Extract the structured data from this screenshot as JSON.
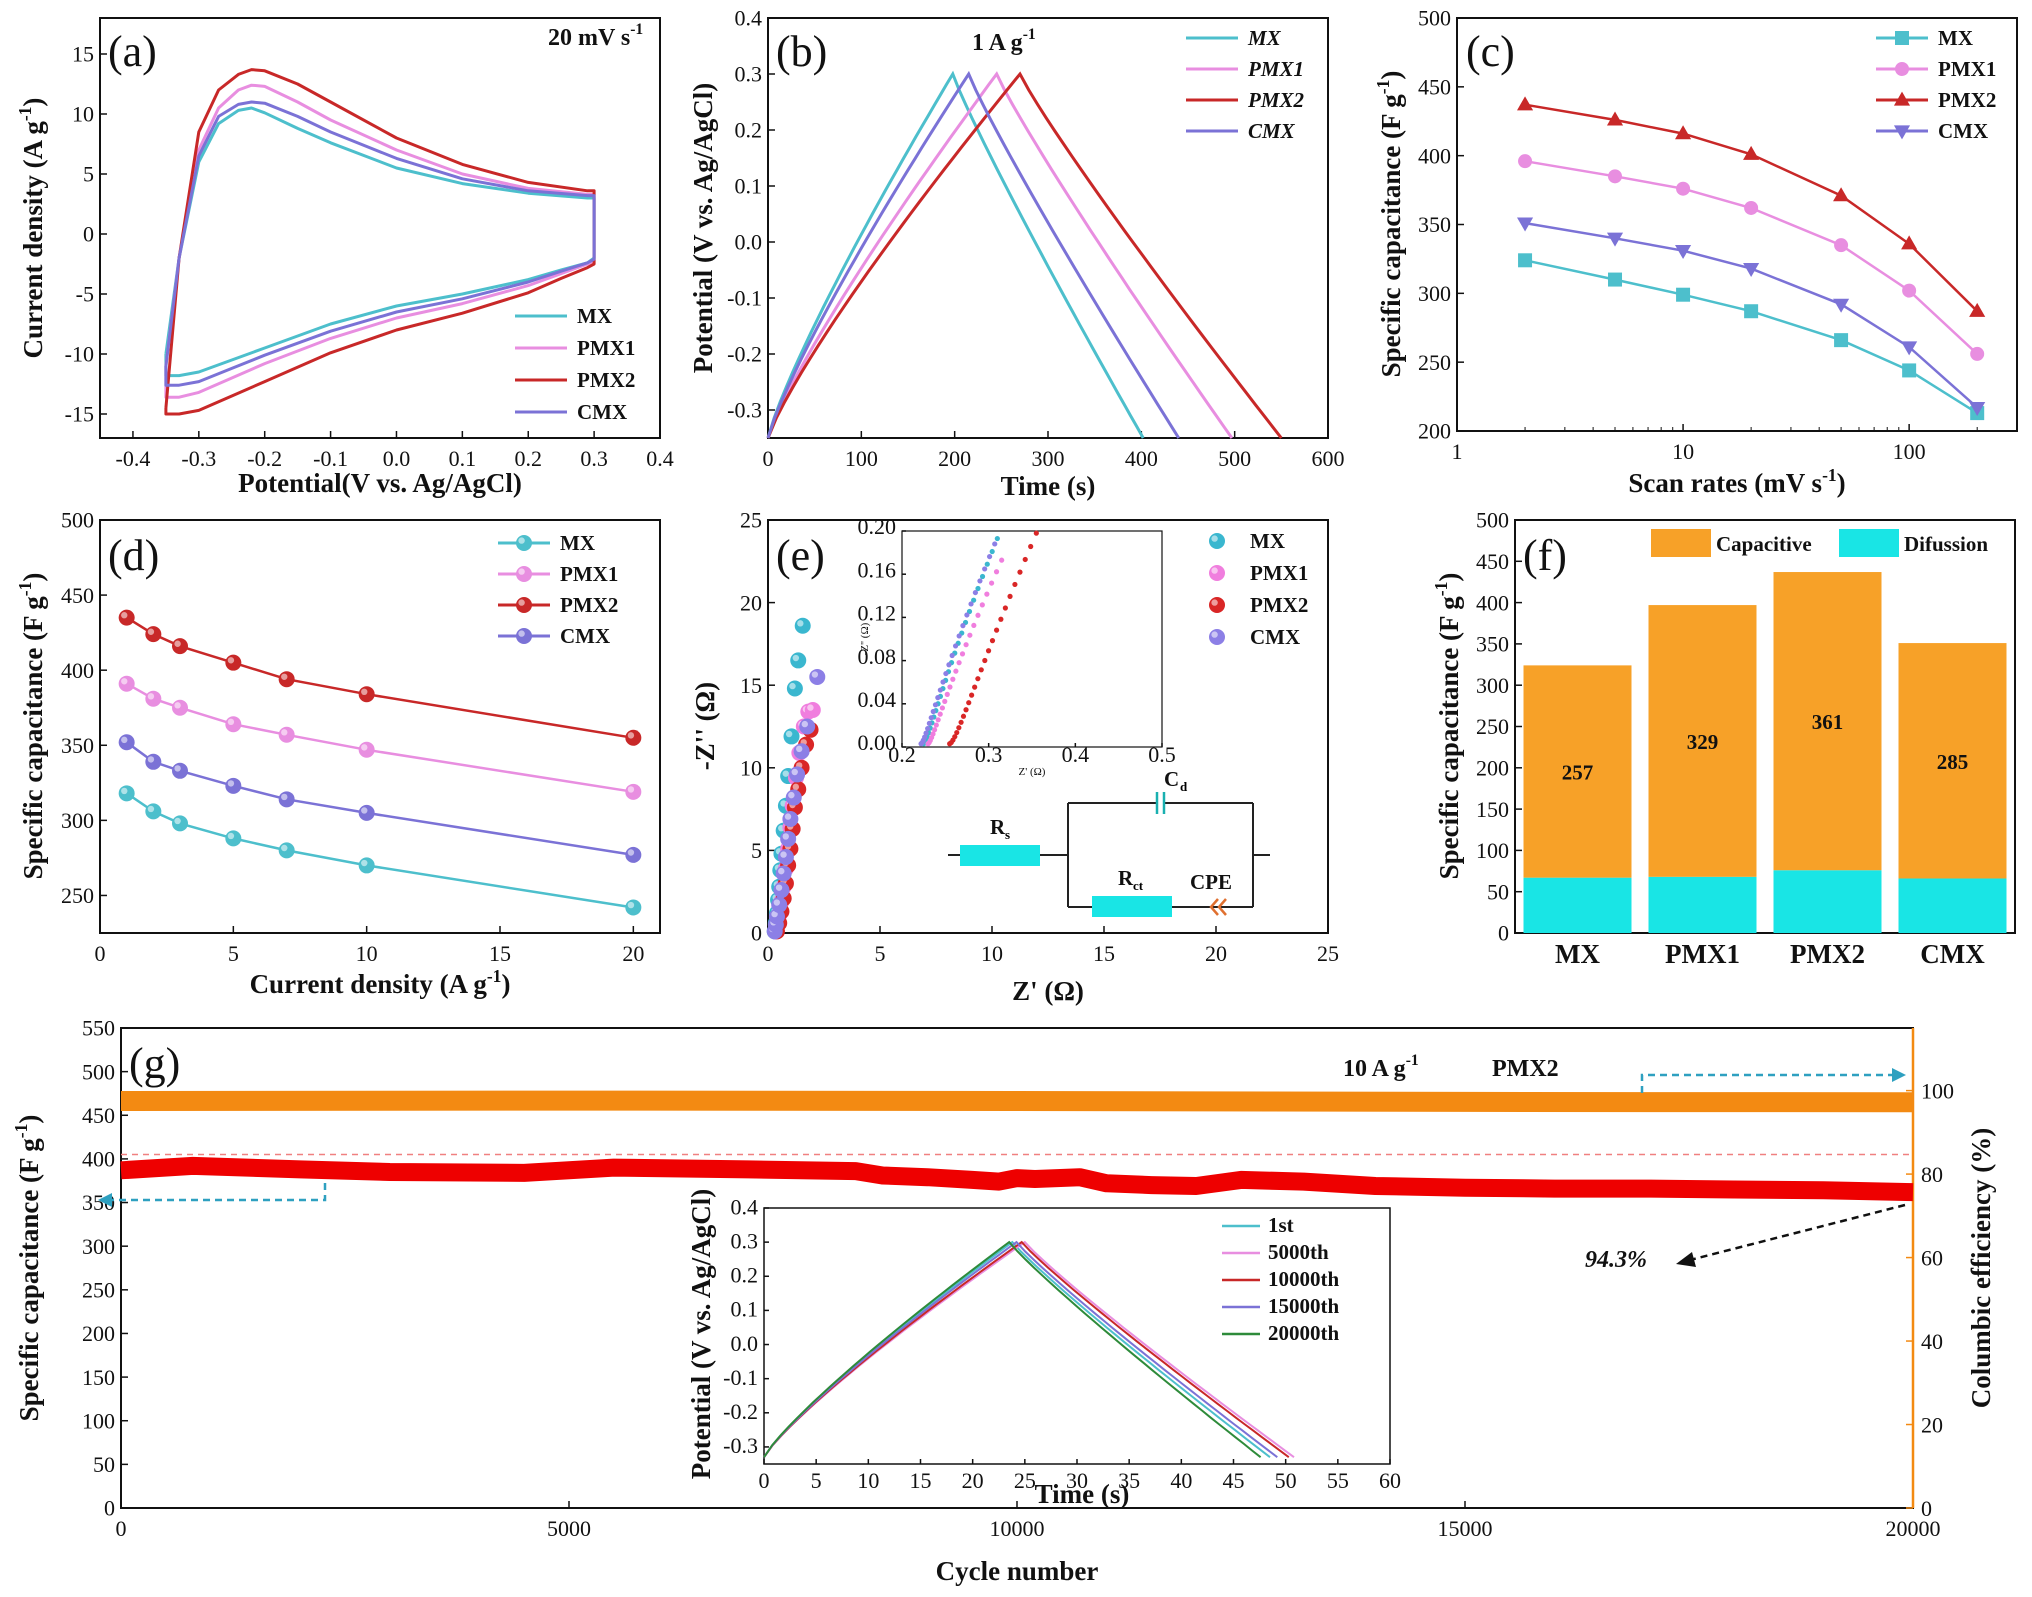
{
  "figure": {
    "a": {
      "label": "(a)",
      "note": "20 mV s",
      "note_sup": "-1"
    },
    "b": {
      "label": "(b)",
      "note": "1 A g",
      "note_sup": "-1"
    },
    "c": {
      "label": "(c)"
    },
    "d": {
      "label": "(d)"
    },
    "e": {
      "label": "(e)"
    },
    "f": {
      "label": "(f)"
    },
    "g": {
      "label": "(g)",
      "note": "10 A g",
      "note_sup": "-1",
      "note2": "PMX2",
      "retention": "94.3%"
    }
  },
  "chart_data": [
    {
      "id": "a",
      "type": "line",
      "xlabel": "Potential(V vs. Ag/AgCl)",
      "ylabel": "Current density (A g-1)",
      "xlim": [
        -0.45,
        0.4
      ],
      "ylim": [
        -17,
        18
      ],
      "xticks": [
        -0.4,
        -0.3,
        -0.2,
        -0.1,
        0.0,
        0.1,
        0.2,
        0.3,
        0.4
      ],
      "yticks": [
        -15,
        -10,
        -5,
        0,
        5,
        10,
        15
      ],
      "legend": "bottom-right",
      "series": [
        {
          "name": "MX",
          "color": "#4dbfcc",
          "x": [
            -0.35,
            -0.33,
            -0.3,
            -0.27,
            -0.24,
            -0.22,
            -0.2,
            -0.15,
            -0.1,
            0.0,
            0.1,
            0.2,
            0.29,
            0.3,
            0.3,
            0.3,
            0.29,
            0.25,
            0.2,
            0.1,
            0.0,
            -0.1,
            -0.2,
            -0.25,
            -0.3,
            -0.33,
            -0.35,
            -0.35
          ],
          "y": [
            -10.0,
            -2.0,
            6.0,
            9.2,
            10.3,
            10.5,
            10.1,
            8.8,
            7.6,
            5.5,
            4.2,
            3.4,
            3.0,
            3.0,
            2.0,
            -2.0,
            -2.4,
            -3.0,
            -3.8,
            -5.0,
            -6.0,
            -7.5,
            -9.5,
            -10.5,
            -11.5,
            -11.8,
            -11.8,
            -10.0
          ]
        },
        {
          "name": "PMX1",
          "color": "#e88ee0",
          "x": [
            -0.35,
            -0.33,
            -0.3,
            -0.27,
            -0.24,
            -0.22,
            -0.2,
            -0.15,
            -0.1,
            0.0,
            0.1,
            0.2,
            0.29,
            0.3,
            0.3,
            0.3,
            0.29,
            0.25,
            0.2,
            0.1,
            0.0,
            -0.1,
            -0.2,
            -0.25,
            -0.3,
            -0.33,
            -0.35,
            -0.35
          ],
          "y": [
            -11.0,
            -2.0,
            7.0,
            10.5,
            12.0,
            12.4,
            12.3,
            11.0,
            9.5,
            7.0,
            5.0,
            3.8,
            3.3,
            3.3,
            2.2,
            -2.2,
            -2.5,
            -3.3,
            -4.3,
            -5.8,
            -7.0,
            -8.7,
            -10.8,
            -12.0,
            -13.2,
            -13.6,
            -13.6,
            -11.0
          ]
        },
        {
          "name": "PMX2",
          "color": "#c82828",
          "x": [
            -0.35,
            -0.33,
            -0.3,
            -0.27,
            -0.24,
            -0.22,
            -0.2,
            -0.15,
            -0.1,
            0.0,
            0.1,
            0.2,
            0.29,
            0.3,
            0.3,
            0.3,
            0.29,
            0.25,
            0.2,
            0.1,
            0.0,
            -0.1,
            -0.2,
            -0.25,
            -0.3,
            -0.33,
            -0.35,
            -0.35
          ],
          "y": [
            -14.5,
            -2.0,
            8.5,
            12.0,
            13.3,
            13.7,
            13.6,
            12.5,
            11.0,
            8.0,
            5.8,
            4.3,
            3.6,
            3.6,
            2.5,
            -2.5,
            -2.8,
            -3.7,
            -4.9,
            -6.6,
            -8.0,
            -9.9,
            -12.3,
            -13.5,
            -14.7,
            -15.0,
            -15.0,
            -14.5
          ]
        },
        {
          "name": "CMX",
          "color": "#7b72d6",
          "x": [
            -0.35,
            -0.33,
            -0.3,
            -0.27,
            -0.24,
            -0.22,
            -0.2,
            -0.15,
            -0.1,
            0.0,
            0.1,
            0.2,
            0.29,
            0.3,
            0.3,
            0.3,
            0.29,
            0.25,
            0.2,
            0.1,
            0.0,
            -0.1,
            -0.2,
            -0.25,
            -0.3,
            -0.33,
            -0.35,
            -0.35
          ],
          "y": [
            -11.0,
            -2.0,
            6.5,
            9.8,
            10.8,
            11.0,
            10.9,
            9.8,
            8.5,
            6.3,
            4.6,
            3.6,
            3.2,
            3.2,
            2.1,
            -2.1,
            -2.4,
            -3.1,
            -4.0,
            -5.4,
            -6.5,
            -8.1,
            -10.1,
            -11.2,
            -12.3,
            -12.6,
            -12.6,
            -11.0
          ]
        }
      ]
    },
    {
      "id": "b",
      "type": "line",
      "xlabel": "Time (s)",
      "ylabel": "Potential (V vs. Ag/AgCl)",
      "xlim": [
        0,
        600
      ],
      "ylim": [
        -0.35,
        0.4
      ],
      "xticks": [
        0,
        100,
        200,
        300,
        400,
        500,
        600
      ],
      "yticks": [
        -0.3,
        -0.2,
        -0.1,
        0.0,
        0.1,
        0.2,
        0.3,
        0.4
      ],
      "legend": "top-right",
      "series": [
        {
          "name": "MX",
          "color": "#4dbfcc",
          "peak": 198,
          "end": 402
        },
        {
          "name": "PMX1",
          "color": "#e88ee0",
          "peak": 245,
          "end": 497
        },
        {
          "name": "PMX2",
          "color": "#c82828",
          "peak": 270,
          "end": 550
        },
        {
          "name": "CMX",
          "color": "#7b72d6",
          "peak": 215,
          "end": 440
        }
      ]
    },
    {
      "id": "c",
      "type": "line",
      "xscale": "log",
      "xlabel": "Scan rates (mV s-1)",
      "ylabel": "Specific capacitance (F g-1)",
      "xlim": [
        1,
        300
      ],
      "ylim": [
        200,
        500
      ],
      "xticks": [
        1,
        10,
        100
      ],
      "yticks": [
        200,
        250,
        300,
        350,
        400,
        450,
        500
      ],
      "legend": "top-right",
      "x": [
        2,
        5,
        10,
        20,
        50,
        100,
        200
      ],
      "series": [
        {
          "name": "MX",
          "color": "#4dbfcc",
          "marker": "square",
          "values": [
            324,
            310,
            299,
            287,
            266,
            244,
            213
          ]
        },
        {
          "name": "PMX1",
          "color": "#e88ee0",
          "marker": "circle",
          "values": [
            396,
            385,
            376,
            362,
            335,
            302,
            256
          ]
        },
        {
          "name": "PMX2",
          "color": "#c82828",
          "marker": "triangle-up",
          "values": [
            437,
            426,
            416,
            401,
            371,
            336,
            287
          ]
        },
        {
          "name": "CMX",
          "color": "#7b72d6",
          "marker": "triangle-down",
          "values": [
            351,
            340,
            331,
            318,
            292,
            261,
            217
          ]
        }
      ]
    },
    {
      "id": "d",
      "type": "line",
      "xlabel": "Current density (A g-1)",
      "ylabel": "Specific capacitance (F g-1)",
      "xlim": [
        0,
        21
      ],
      "ylim": [
        225,
        500
      ],
      "xticks": [
        0,
        5,
        10,
        15,
        20
      ],
      "yticks": [
        250,
        300,
        350,
        400,
        450,
        500
      ],
      "legend": "top-right",
      "x": [
        1,
        2,
        3,
        5,
        7,
        10,
        20
      ],
      "series": [
        {
          "name": "MX",
          "color": "#4dbfcc",
          "values": [
            318,
            306,
            298,
            288,
            280,
            270,
            242
          ]
        },
        {
          "name": "PMX1",
          "color": "#e88ee0",
          "values": [
            391,
            381,
            375,
            364,
            357,
            347,
            319
          ]
        },
        {
          "name": "PMX2",
          "color": "#c82828",
          "values": [
            435,
            424,
            416,
            405,
            394,
            384,
            355
          ]
        },
        {
          "name": "CMX",
          "color": "#7b72d6",
          "values": [
            352,
            339,
            333,
            323,
            314,
            305,
            277
          ]
        }
      ]
    },
    {
      "id": "e",
      "type": "scatter",
      "xlabel": "Z' (Ω)",
      "ylabel": "-Z'' (Ω)",
      "xlim": [
        0,
        25
      ],
      "ylim": [
        0,
        25
      ],
      "xticks": [
        0,
        5,
        10,
        15,
        20,
        25
      ],
      "yticks": [
        0,
        5,
        10,
        15,
        20,
        25
      ],
      "legend": "top-right",
      "series": [
        {
          "name": "MX",
          "color": "#3ab7cf",
          "x": [
            0.3,
            0.35,
            0.4,
            0.45,
            0.5,
            0.55,
            0.6,
            0.7,
            0.8,
            0.9,
            1.05,
            1.2,
            1.35,
            1.55
          ],
          "y": [
            0.1,
            0.6,
            1.2,
            2.0,
            2.8,
            3.8,
            4.8,
            6.2,
            7.7,
            9.5,
            11.9,
            14.8,
            16.5,
            18.6
          ]
        },
        {
          "name": "PMX1",
          "color": "#f07ede",
          "x": [
            0.35,
            0.4,
            0.5,
            0.6,
            0.7,
            0.8,
            0.9,
            1.0,
            1.1,
            1.25,
            1.4,
            1.6,
            1.8,
            2.0
          ],
          "y": [
            0.1,
            0.5,
            1.1,
            1.9,
            2.8,
            3.9,
            5.1,
            6.4,
            7.7,
            9.4,
            10.9,
            12.5,
            13.4,
            13.5
          ]
        },
        {
          "name": "PMX2",
          "color": "#d92626",
          "x": [
            0.4,
            0.5,
            0.6,
            0.7,
            0.8,
            0.9,
            1.0,
            1.1,
            1.2,
            1.35,
            1.5,
            1.7,
            1.9
          ],
          "y": [
            0.1,
            0.6,
            1.3,
            2.1,
            3.0,
            4.1,
            5.1,
            6.3,
            7.6,
            8.7,
            10.0,
            11.4,
            12.3
          ]
        },
        {
          "name": "CMX",
          "color": "#8c7fe6",
          "x": [
            0.3,
            0.35,
            0.4,
            0.5,
            0.6,
            0.7,
            0.8,
            0.9,
            1.0,
            1.15,
            1.3,
            1.5,
            1.75,
            2.2
          ],
          "y": [
            0.1,
            0.5,
            1.0,
            1.7,
            2.6,
            3.6,
            4.6,
            5.7,
            6.9,
            8.2,
            9.6,
            11.0,
            12.5,
            15.5
          ]
        }
      ],
      "inset": {
        "xlim": [
          0.2,
          0.5
        ],
        "ylim": [
          0,
          0.2
        ],
        "xticks": [
          0.2,
          0.3,
          0.4,
          0.5
        ],
        "yticks": [
          0,
          0.04,
          0.08,
          0.12,
          0.16,
          0.2
        ],
        "xlabel": "Z' (Ω)",
        "ylabel": "-Z'' (Ω)"
      },
      "circuit": {
        "rs": "R",
        "rs_sub": "s",
        "cd": "C",
        "cd_sub": "d",
        "rct": "R",
        "rct_sub": "ct",
        "cpe": "CPE"
      }
    },
    {
      "id": "f",
      "type": "bar",
      "ylabel": "Specific capacitance (F g-1)",
      "ylim": [
        0,
        500
      ],
      "yticks": [
        0,
        50,
        100,
        150,
        200,
        250,
        300,
        350,
        400,
        450,
        500
      ],
      "legend": "top",
      "categories": [
        "MX",
        "PMX1",
        "PMX2",
        "CMX"
      ],
      "series": [
        {
          "name": "Difussion",
          "color": "#19e5e5",
          "values": [
            67,
            68,
            76,
            66
          ]
        },
        {
          "name": "Capacitive",
          "color": "#f7a128",
          "values": [
            257,
            329,
            361,
            285
          ]
        }
      ],
      "bar_labels": [
        "257",
        "329",
        "361",
        "285"
      ]
    },
    {
      "id": "g",
      "type": "line",
      "xlabel": "Cycle number",
      "ylabel": "Specific capacitance (F g-1)",
      "y2label": "Columbic efficiency (%)",
      "xlim": [
        0,
        20000
      ],
      "ylim": [
        0,
        550
      ],
      "y2lim": [
        0,
        115
      ],
      "xticks": [
        0,
        5000,
        10000,
        15000,
        20000
      ],
      "yticks": [
        0,
        50,
        100,
        150,
        200,
        250,
        300,
        350,
        400,
        450,
        500,
        550
      ],
      "y2ticks": [
        0,
        20,
        40,
        60,
        80,
        100
      ],
      "series": [
        {
          "name": "Specific capacitance",
          "color": "#ee0000",
          "axis": "left",
          "x": [
            0,
            800,
            2000,
            3000,
            4500,
            5500,
            7000,
            8200,
            8500,
            9000,
            9500,
            9800,
            10000,
            10200,
            10700,
            11000,
            11500,
            12000,
            12500,
            13200,
            14000,
            15000,
            16000,
            17000,
            18000,
            19000,
            20000
          ],
          "y": [
            387,
            392,
            388,
            385,
            384,
            390,
            388,
            386,
            381,
            379,
            376,
            374,
            378,
            377,
            379,
            372,
            370,
            369,
            376,
            374,
            369,
            367,
            366,
            366,
            365,
            364,
            362
          ]
        },
        {
          "name": "Columbic efficiency",
          "color": "#f38a12",
          "axis": "right",
          "x": [
            0,
            5000,
            10000,
            15000,
            20000
          ],
          "y": [
            97.5,
            97.6,
            97.5,
            97.3,
            97.2
          ]
        }
      ],
      "reference_line": 405,
      "inset": {
        "type": "line",
        "xlabel": "Time (s)",
        "ylabel": "Potential (V vs. Ag/AgCl)",
        "xlim": [
          0,
          60
        ],
        "ylim": [
          -0.35,
          0.4
        ],
        "xticks": [
          0,
          5,
          10,
          15,
          20,
          25,
          30,
          35,
          40,
          45,
          50,
          55,
          60
        ],
        "yticks": [
          -0.3,
          -0.2,
          -0.1,
          0.0,
          0.1,
          0.2,
          0.3,
          0.4
        ],
        "legend": "top-right",
        "series": [
          {
            "name": "1st",
            "color": "#4dbfcc",
            "peak": 23.8,
            "end": 48.5
          },
          {
            "name": "5000th",
            "color": "#e88ee0",
            "peak": 25.0,
            "end": 50.8
          },
          {
            "name": "10000th",
            "color": "#c82828",
            "peak": 24.7,
            "end": 50.3
          },
          {
            "name": "15000th",
            "color": "#7b72d6",
            "peak": 24.2,
            "end": 49.2
          },
          {
            "name": "20000th",
            "color": "#2e8b3a",
            "peak": 23.5,
            "end": 47.6
          }
        ]
      }
    }
  ]
}
